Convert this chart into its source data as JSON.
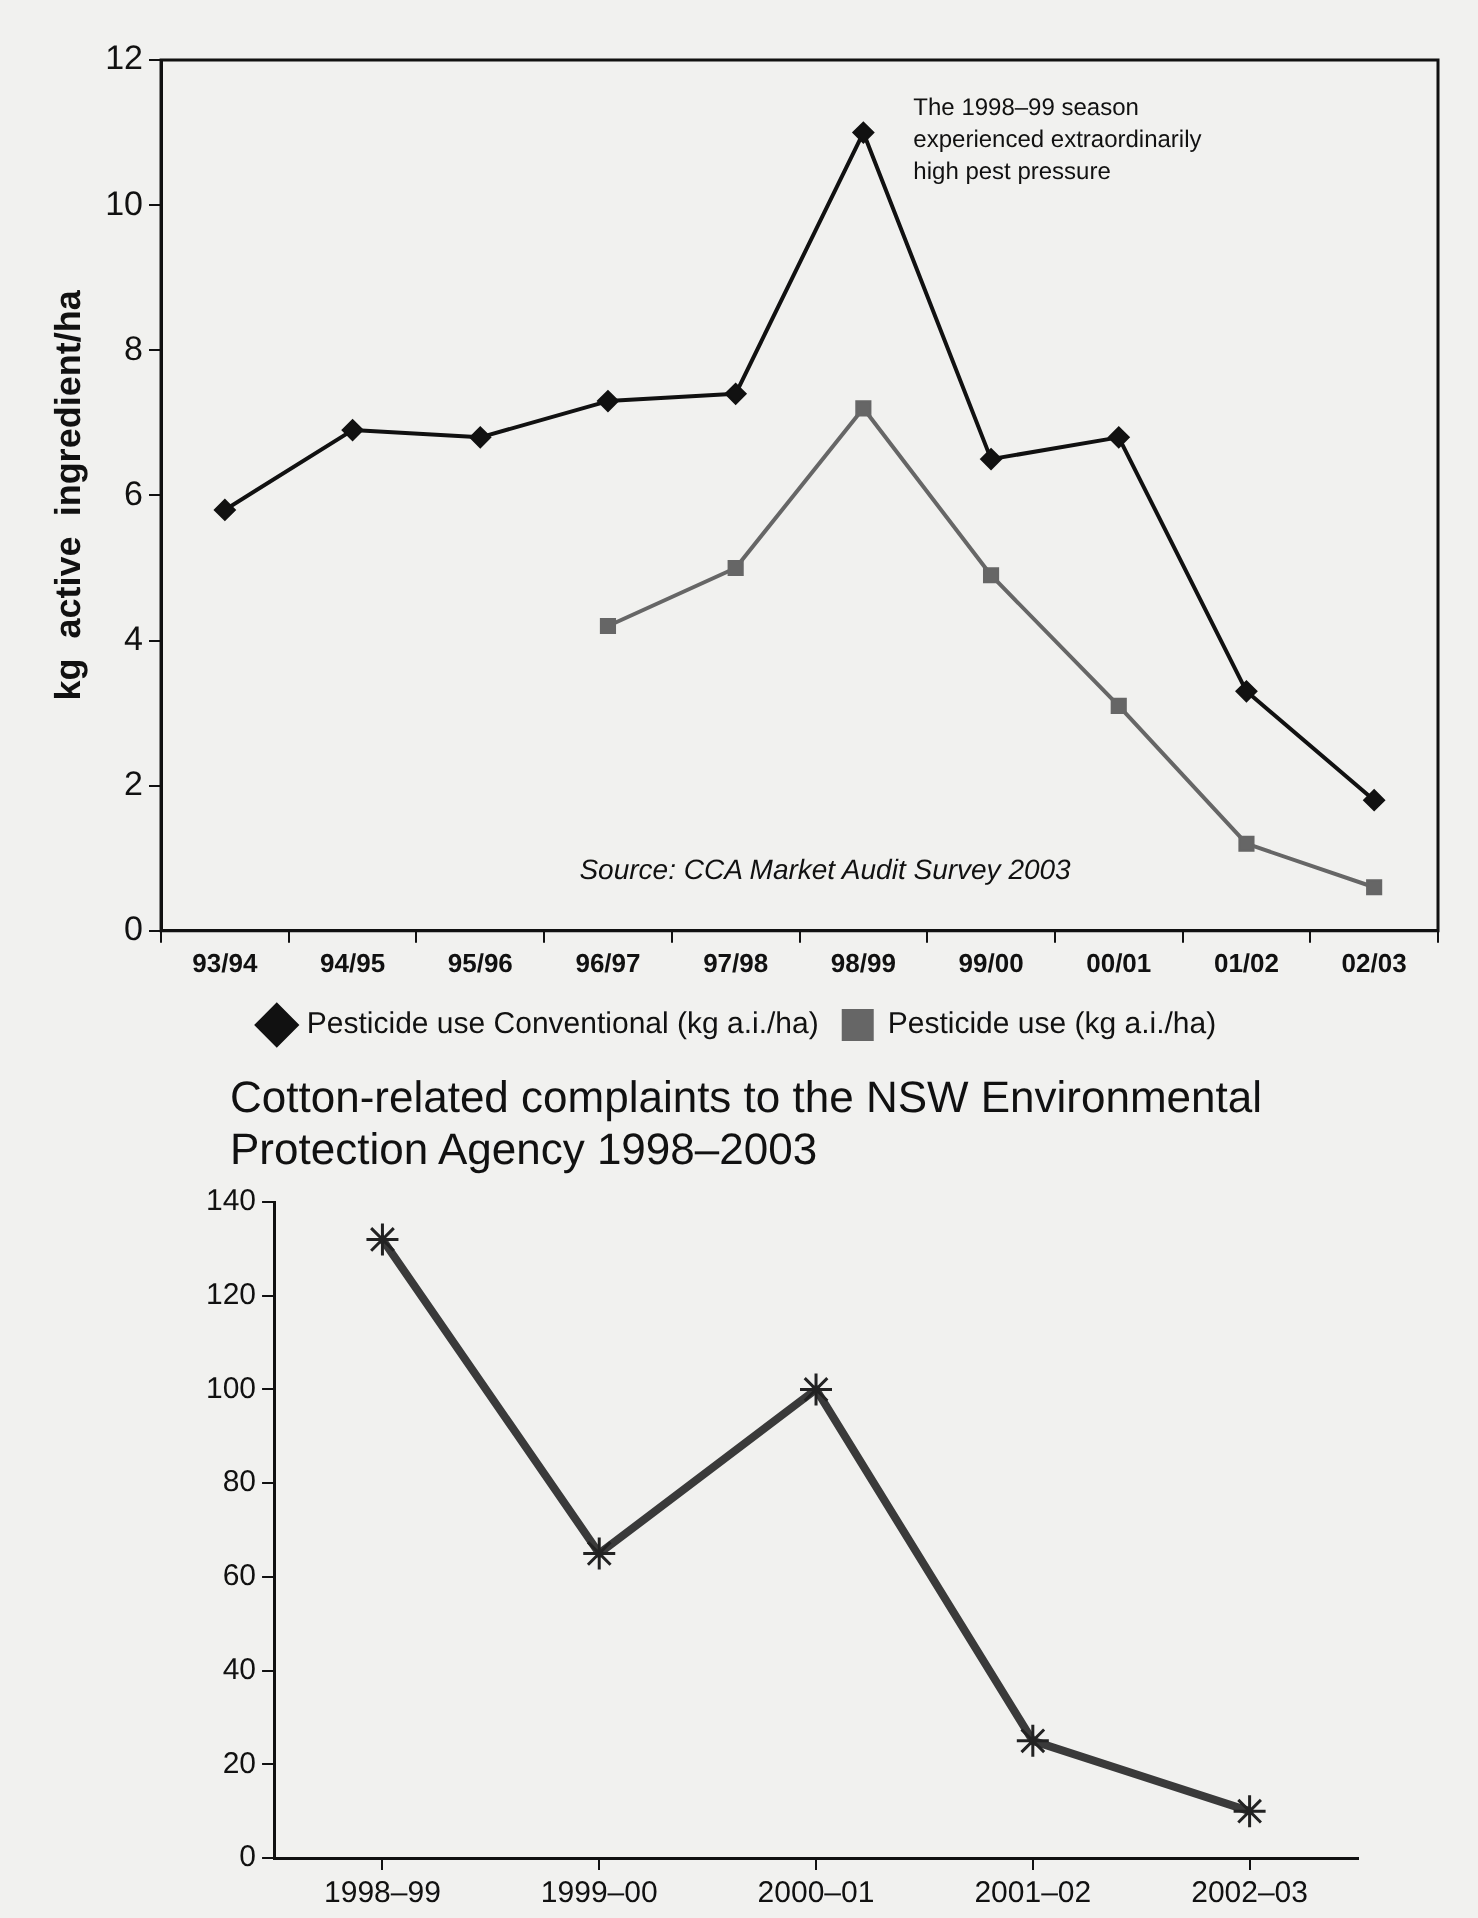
{
  "chart_data": [
    {
      "type": "line",
      "ylabel": "kg  active  ingredient/ha",
      "categories": [
        "93/94",
        "94/95",
        "95/96",
        "96/97",
        "97/98",
        "98/99",
        "99/00",
        "00/01",
        "01/02",
        "02/03"
      ],
      "series": [
        {
          "name": "Pesticide use Conventional (kg a.i./ha)",
          "color": "#111111",
          "marker": "diamond",
          "values": [
            5.8,
            6.9,
            6.8,
            7.3,
            7.4,
            11.0,
            6.5,
            6.8,
            3.3,
            1.8
          ]
        },
        {
          "name": "Pesticide use (kg a.i./ha)",
          "color": "#666666",
          "marker": "square",
          "values": [
            null,
            null,
            null,
            4.2,
            5.0,
            7.2,
            4.9,
            3.1,
            1.2,
            0.6
          ]
        }
      ],
      "ylim": [
        0,
        12
      ],
      "yticks": [
        0,
        2,
        4,
        6,
        8,
        10,
        12
      ],
      "grid": false,
      "legend": "bottom",
      "line_style": "solid",
      "annotations": [
        {
          "text": "The 1998–99 season experienced extraordinarily high pest pressure",
          "x": "98/99",
          "y": 11.0
        },
        "Source: CCA Market Audit Survey 2003"
      ]
    },
    {
      "type": "line",
      "title": "Cotton-related complaints to the NSW Environmental Protection Agency 1998–2003",
      "categories": [
        "1998–99",
        "1999–00",
        "2000–01",
        "2001–02",
        "2002–03"
      ],
      "series": [
        {
          "color": "#3a3a3a",
          "values": [
            132,
            65,
            100,
            25,
            10
          ]
        }
      ],
      "ylim": [
        0,
        140
      ],
      "yticks": [
        0,
        20,
        40,
        60,
        80,
        100,
        120,
        140
      ],
      "grid": false,
      "legend": false,
      "marker": "cross",
      "line_style": "solid"
    }
  ]
}
